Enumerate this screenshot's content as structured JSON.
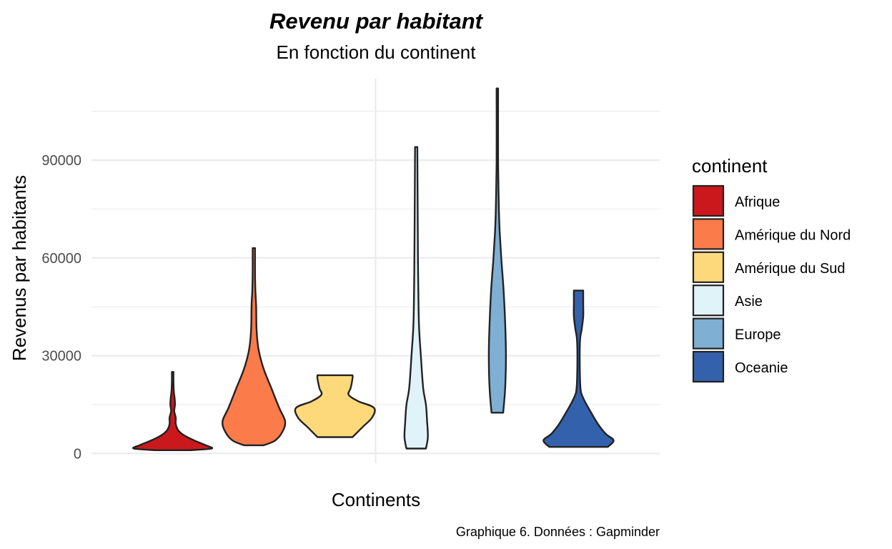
{
  "chart_data": {
    "type": "violin",
    "title": "Revenu par habitant",
    "subtitle": "En fonction du continent",
    "xlabel": "Continents",
    "ylabel": "Revenus par habitants",
    "caption": "Graphique 6. Données : Gapminder",
    "ylim": [
      -3000,
      115000
    ],
    "yticks": [
      0,
      30000,
      60000,
      90000
    ],
    "ytick_labels": [
      "0",
      "30000",
      "60000",
      "90000"
    ],
    "grid": true,
    "legend": {
      "title": "continent",
      "position": "right"
    },
    "series": [
      {
        "name": "Afrique",
        "color": "#cb181d",
        "profile": [
          [
            1000,
            0.45
          ],
          [
            1500,
            1.0
          ],
          [
            2500,
            0.85
          ],
          [
            4000,
            0.55
          ],
          [
            5500,
            0.3
          ],
          [
            7000,
            0.15
          ],
          [
            9000,
            0.08
          ],
          [
            11000,
            0.08
          ],
          [
            13000,
            0.04
          ],
          [
            15000,
            0.06
          ],
          [
            17000,
            0.05
          ],
          [
            19000,
            0.03
          ],
          [
            22000,
            0.02
          ],
          [
            25000,
            0.02
          ]
        ]
      },
      {
        "name": "Amérique du Nord",
        "color": "#fb7b4a",
        "profile": [
          [
            2500,
            0.25
          ],
          [
            4000,
            0.55
          ],
          [
            7000,
            0.75
          ],
          [
            10000,
            0.8
          ],
          [
            14000,
            0.65
          ],
          [
            20000,
            0.45
          ],
          [
            26000,
            0.25
          ],
          [
            32000,
            0.12
          ],
          [
            38000,
            0.07
          ],
          [
            45000,
            0.06
          ],
          [
            50000,
            0.04
          ],
          [
            55000,
            0.03
          ],
          [
            63000,
            0.03
          ]
        ]
      },
      {
        "name": "Amérique du Sud",
        "color": "#fed97c",
        "profile": [
          [
            5000,
            0.45
          ],
          [
            8000,
            0.7
          ],
          [
            11000,
            0.95
          ],
          [
            14000,
            1.0
          ],
          [
            16000,
            0.6
          ],
          [
            18000,
            0.35
          ],
          [
            20000,
            0.4
          ],
          [
            23000,
            0.45
          ],
          [
            24000,
            0.45
          ]
        ]
      },
      {
        "name": "Asie",
        "color": "#e0f3f8",
        "profile": [
          [
            1500,
            0.25
          ],
          [
            5000,
            0.3
          ],
          [
            10000,
            0.28
          ],
          [
            15000,
            0.25
          ],
          [
            20000,
            0.18
          ],
          [
            30000,
            0.12
          ],
          [
            40000,
            0.07
          ],
          [
            55000,
            0.05
          ],
          [
            70000,
            0.04
          ],
          [
            94000,
            0.03
          ]
        ]
      },
      {
        "name": "Europe",
        "color": "#7fafd3",
        "profile": [
          [
            12500,
            0.15
          ],
          [
            20000,
            0.2
          ],
          [
            30000,
            0.22
          ],
          [
            40000,
            0.2
          ],
          [
            50000,
            0.16
          ],
          [
            60000,
            0.1
          ],
          [
            68000,
            0.06
          ],
          [
            75000,
            0.04
          ],
          [
            90000,
            0.02
          ],
          [
            112000,
            0.02
          ]
        ]
      },
      {
        "name": "Oceanie",
        "color": "#3461ab",
        "profile": [
          [
            2000,
            0.75
          ],
          [
            4000,
            0.9
          ],
          [
            6000,
            0.7
          ],
          [
            9000,
            0.5
          ],
          [
            13000,
            0.3
          ],
          [
            17000,
            0.12
          ],
          [
            20000,
            0.05
          ],
          [
            28000,
            0.03
          ],
          [
            35000,
            0.04
          ],
          [
            38000,
            0.08
          ],
          [
            42000,
            0.12
          ],
          [
            46000,
            0.12
          ],
          [
            50000,
            0.12
          ]
        ]
      }
    ]
  }
}
